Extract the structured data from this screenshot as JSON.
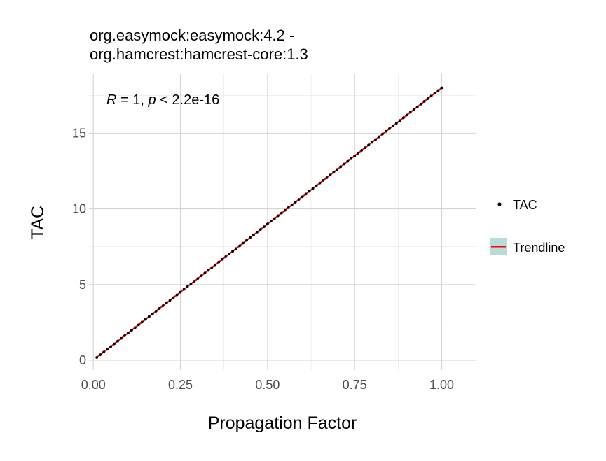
{
  "chart_data": {
    "type": "scatter",
    "title_lines": [
      "org.easymock:easymock:4.2 -",
      "org.hamcrest:hamcrest-core:1.3"
    ],
    "xlabel": "Propagation Factor",
    "ylabel": "TAC",
    "xlim": [
      -0.0125,
      1.0975
    ],
    "ylim": [
      -0.65,
      18.9
    ],
    "x_ticks": [
      0.0,
      0.25,
      0.5,
      0.75,
      1.0
    ],
    "x_tick_labels": [
      "0.00",
      "0.25",
      "0.50",
      "0.75",
      "1.00"
    ],
    "y_ticks": [
      0,
      5,
      10,
      15
    ],
    "y_tick_labels": [
      "0",
      "5",
      "10",
      "15"
    ],
    "grid": true,
    "legend_position": "right",
    "annotation": {
      "r_symbol": "R",
      "r_text": " = 1, ",
      "p_symbol": "p",
      "p_text": " < 2.2e-16"
    },
    "series": [
      {
        "name": "TAC",
        "kind": "points",
        "color": "#000000",
        "x_start": 0.01,
        "x_end": 1.0,
        "x_step": 0.01,
        "slope": 18,
        "intercept": 0
      },
      {
        "name": "Trendline",
        "kind": "line",
        "color": "#ff0000",
        "band_color": "#b8dcd7",
        "x": [
          0.01,
          1.0
        ],
        "y": [
          0.18,
          18.0
        ]
      }
    ]
  }
}
